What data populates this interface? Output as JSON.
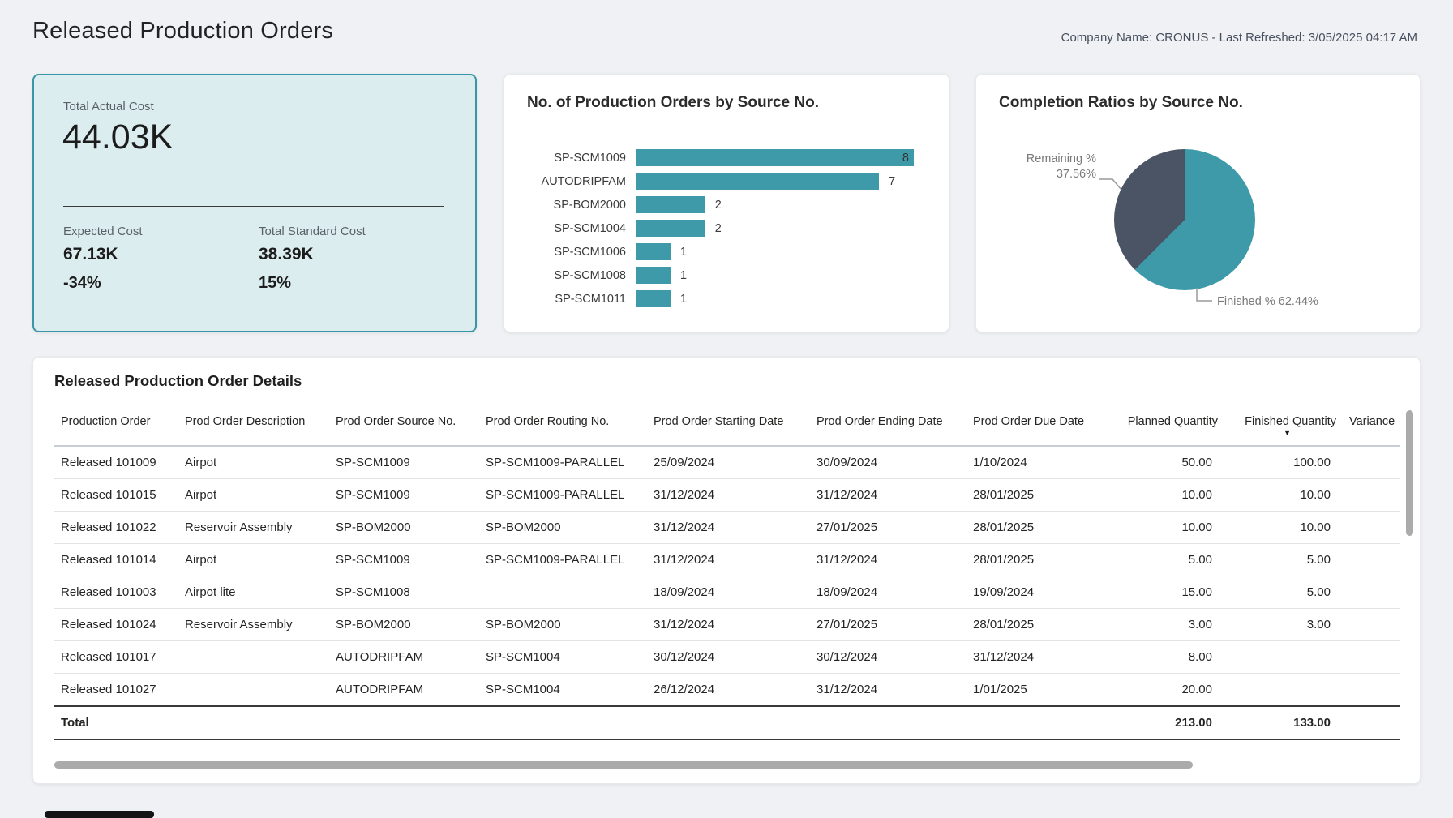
{
  "page": {
    "title": "Released Production Orders",
    "meta": "Company Name: CRONUS - Last Refreshed: 3/05/2025 04:17 AM"
  },
  "colors": {
    "accent_teal": "#3E9AA9",
    "slate": "#4B5464",
    "kpi_background": "#DCEDF0",
    "kpi_border": "#3A96A6"
  },
  "kpi": {
    "label": "Total Actual Cost",
    "value": "44.03K",
    "expected_label": "Expected Cost",
    "expected_value": "67.13K",
    "expected_delta": "-34%",
    "standard_label": "Total Standard Cost",
    "standard_value": "38.39K",
    "standard_delta": "15%"
  },
  "chart_data": [
    {
      "type": "bar",
      "orientation": "horizontal",
      "title": "No. of Production Orders by Source No.",
      "categories": [
        "SP-SCM1009",
        "AUTODRIPFAM",
        "SP-BOM2000",
        "SP-SCM1004",
        "SP-SCM1006",
        "SP-SCM1008",
        "SP-SCM1011"
      ],
      "values": [
        8,
        7,
        2,
        2,
        1,
        1,
        1
      ],
      "xlim": [
        0,
        8
      ],
      "bar_color": "#3E9AA9",
      "data_labels": true,
      "legend": "none",
      "grid": false
    },
    {
      "type": "pie",
      "title": "Completion Ratios by Source No.",
      "slices": [
        {
          "label": "Finished %",
          "value": 62.44,
          "pct_text": "62.44%",
          "color": "#3E9AA9"
        },
        {
          "label": "Remaining %",
          "value": 37.56,
          "pct_text": "37.56%",
          "color": "#4B5464"
        }
      ],
      "legend": "callout-labels"
    }
  ],
  "table": {
    "title": "Released Production Order Details",
    "columns": [
      "Production Order",
      "Prod Order Description",
      "Prod Order Source No.",
      "Prod Order Routing No.",
      "Prod Order Starting Date",
      "Prod Order Ending Date",
      "Prod Order Due Date",
      "Planned Quantity",
      "Finished Quantity",
      "Variance"
    ],
    "numeric_columns": [
      "Planned Quantity",
      "Finished Quantity"
    ],
    "sorted_column": "Finished Quantity",
    "sort_direction": "descending",
    "rows": [
      [
        "Released 101009",
        "Airpot",
        "SP-SCM1009",
        "SP-SCM1009-PARALLEL",
        "25/09/2024",
        "30/09/2024",
        "1/10/2024",
        "50.00",
        "100.00",
        ""
      ],
      [
        "Released 101015",
        "Airpot",
        "SP-SCM1009",
        "SP-SCM1009-PARALLEL",
        "31/12/2024",
        "31/12/2024",
        "28/01/2025",
        "10.00",
        "10.00",
        ""
      ],
      [
        "Released 101022",
        "Reservoir Assembly",
        "SP-BOM2000",
        "SP-BOM2000",
        "31/12/2024",
        "27/01/2025",
        "28/01/2025",
        "10.00",
        "10.00",
        ""
      ],
      [
        "Released 101014",
        "Airpot",
        "SP-SCM1009",
        "SP-SCM1009-PARALLEL",
        "31/12/2024",
        "31/12/2024",
        "28/01/2025",
        "5.00",
        "5.00",
        ""
      ],
      [
        "Released 101003",
        "Airpot lite",
        "SP-SCM1008",
        "",
        "18/09/2024",
        "18/09/2024",
        "19/09/2024",
        "15.00",
        "5.00",
        ""
      ],
      [
        "Released 101024",
        "Reservoir Assembly",
        "SP-BOM2000",
        "SP-BOM2000",
        "31/12/2024",
        "27/01/2025",
        "28/01/2025",
        "3.00",
        "3.00",
        ""
      ],
      [
        "Released 101017",
        "",
        "AUTODRIPFAM",
        "SP-SCM1004",
        "30/12/2024",
        "30/12/2024",
        "31/12/2024",
        "8.00",
        "",
        ""
      ],
      [
        "Released 101027",
        "",
        "AUTODRIPFAM",
        "SP-SCM1004",
        "26/12/2024",
        "31/12/2024",
        "1/01/2025",
        "20.00",
        "",
        ""
      ]
    ],
    "total": {
      "label": "Total",
      "planned": "213.00",
      "finished": "133.00"
    }
  }
}
